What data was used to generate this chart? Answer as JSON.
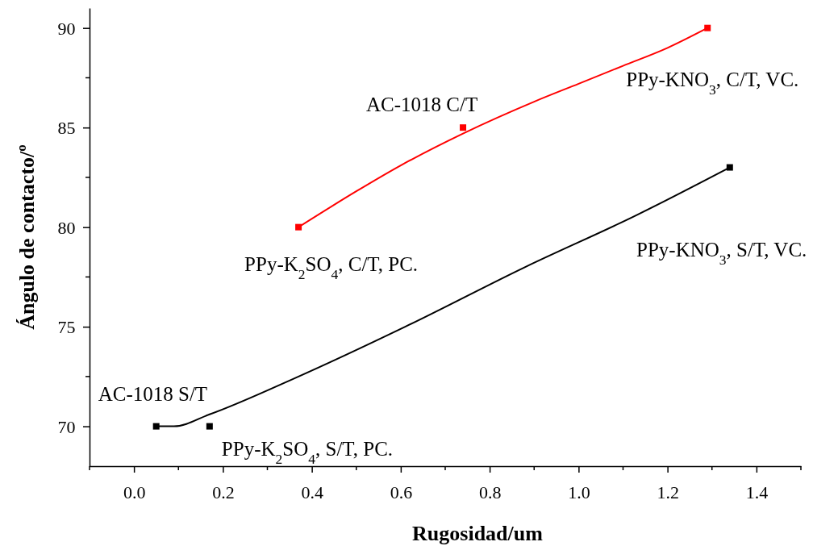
{
  "chart_data": {
    "type": "scatter",
    "xlabel": "Rugosidad/um",
    "ylabel": "Ángulo de contacto/º",
    "xlim": [
      -0.1,
      1.5
    ],
    "ylim": [
      68,
      91
    ],
    "xticks": [
      {
        "value": 0,
        "label": "0.0"
      },
      0.2,
      0.4,
      0.6,
      0.8,
      {
        "value": 1,
        "label": "1.0"
      },
      1.2,
      1.4
    ],
    "yticks": [
      70,
      75,
      80,
      85,
      90
    ],
    "grid": false,
    "series": [
      {
        "color": "#000000",
        "marker": "square",
        "x": [
          0.05,
          0.17,
          1.34
        ],
        "values": [
          70,
          70,
          83
        ]
      },
      {
        "color": "#ff0000",
        "marker": "square",
        "x": [
          0.37,
          0.74,
          1.29
        ],
        "values": [
          80,
          85,
          90
        ]
      },
      {
        "type": "line",
        "marker": "none",
        "color": "#000000",
        "x": [
          0.05,
          0.09,
          0.17,
          0.36,
          0.61,
          0.88,
          1.13,
          1.34
        ],
        "values": [
          70,
          70.0,
          70.6,
          72.4,
          75.0,
          78.0,
          80.6,
          83
        ]
      },
      {
        "type": "line",
        "marker": "none",
        "color": "#ff0000",
        "x": [
          0.37,
          0.5,
          0.6,
          0.74,
          0.9,
          1.0,
          1.1,
          1.2,
          1.29
        ],
        "values": [
          80,
          81.8,
          83.1,
          84.7,
          86.3,
          87.2,
          88.1,
          89.0,
          90
        ]
      }
    ],
    "annotations": [
      {
        "text": "AC-1018 S/T",
        "x": 0.05,
        "y": 70
      },
      {
        "text": "PPy-K$_{2}$SO$_{4}$, S/T, PC.",
        "x": 0.17,
        "y": 70
      },
      {
        "text": "PPy-K$_{2}$SO$_{4}$, C/T, PC.",
        "x": 0.37,
        "y": 80
      },
      {
        "text": "AC-1018 C/T",
        "x": 0.74,
        "y": 85
      },
      {
        "text": "PPy-KNO$_{3}$, C/T, VC.",
        "x": 1.29,
        "y": 90
      },
      "PPy-KNO$_{3}$, S/T, VC."
    ]
  }
}
